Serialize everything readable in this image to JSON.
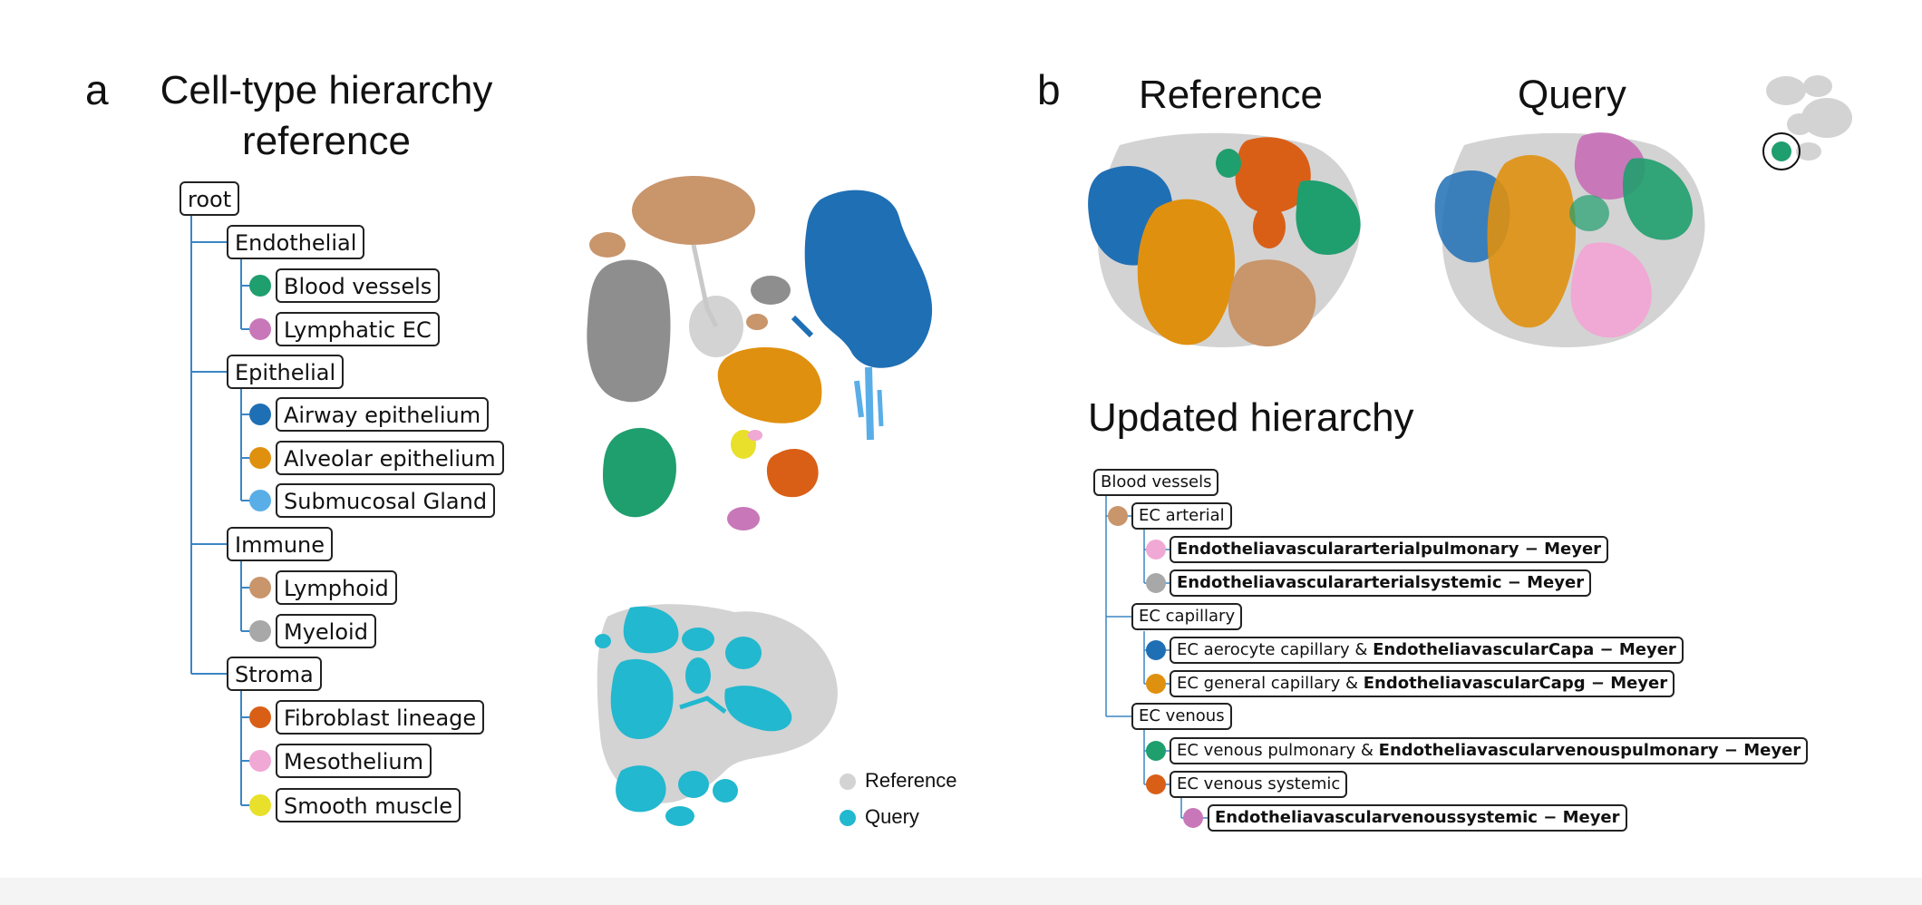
{
  "colors": {
    "blood_vessels": "#1f9e6e",
    "lymphatic_ec": "#c878b8",
    "airway_epithelium": "#1f6fb5",
    "alveolar_epithelium": "#e0900f",
    "submucosal_gland": "#5aaee8",
    "lymphoid": "#c9956b",
    "myeloid": "#a8a8a8",
    "fibroblast_lineage": "#d95f17",
    "mesothelium": "#f0a8d4",
    "smooth_muscle": "#e8e02a",
    "reference": "#d3d3d3",
    "query": "#22b8cf",
    "tree_line": "#3b86c4"
  },
  "panel_a": {
    "letter": "a",
    "title_line1": "Cell-type hierarchy",
    "title_line2": "reference",
    "tree": {
      "root": "root",
      "groups": [
        {
          "label": "Endothelial",
          "children": [
            {
              "label": "Blood vessels",
              "color": "#1f9e6e"
            },
            {
              "label": "Lymphatic EC",
              "color": "#c878b8"
            }
          ]
        },
        {
          "label": "Epithelial",
          "children": [
            {
              "label": "Airway epithelium",
              "color": "#1f6fb5"
            },
            {
              "label": "Alveolar epithelium",
              "color": "#e0900f"
            },
            {
              "label": "Submucosal Gland",
              "color": "#5aaee8"
            }
          ]
        },
        {
          "label": "Immune",
          "children": [
            {
              "label": "Lymphoid",
              "color": "#c9956b"
            },
            {
              "label": "Myeloid",
              "color": "#a8a8a8"
            }
          ]
        },
        {
          "label": "Stroma",
          "children": [
            {
              "label": "Fibroblast lineage",
              "color": "#d95f17"
            },
            {
              "label": "Mesothelium",
              "color": "#f0a8d4"
            },
            {
              "label": "Smooth muscle",
              "color": "#e8e02a"
            }
          ]
        }
      ]
    },
    "legend": {
      "reference": "Reference",
      "query": "Query"
    }
  },
  "panel_b": {
    "letter": "b",
    "reference_title": "Reference",
    "query_title": "Query",
    "updated_title": "Updated hierarchy",
    "tree": {
      "root": "Blood vessels",
      "ec_arterial": "EC arterial",
      "arterial_pulmonary": "Endotheliavasculararterialpulmonary − Meyer",
      "arterial_systemic": "Endotheliavasculararterialsystemic − Meyer",
      "ec_capillary": "EC capillary",
      "aerocyte_prefix": "EC aerocyte capillary & ",
      "aerocyte_bold": "EndotheliavascularCapa − Meyer",
      "general_prefix": "EC general capillary & ",
      "general_bold": "EndotheliavascularCapg − Meyer",
      "ec_venous": "EC venous",
      "venous_pulm_prefix": "EC venous pulmonary & ",
      "venous_pulm_bold": "Endotheliavascularvenouspulmonary − Meyer",
      "venous_systemic": "EC venous systemic",
      "venous_systemic_meyer": "Endotheliavascularvenoussystemic − Meyer"
    }
  }
}
